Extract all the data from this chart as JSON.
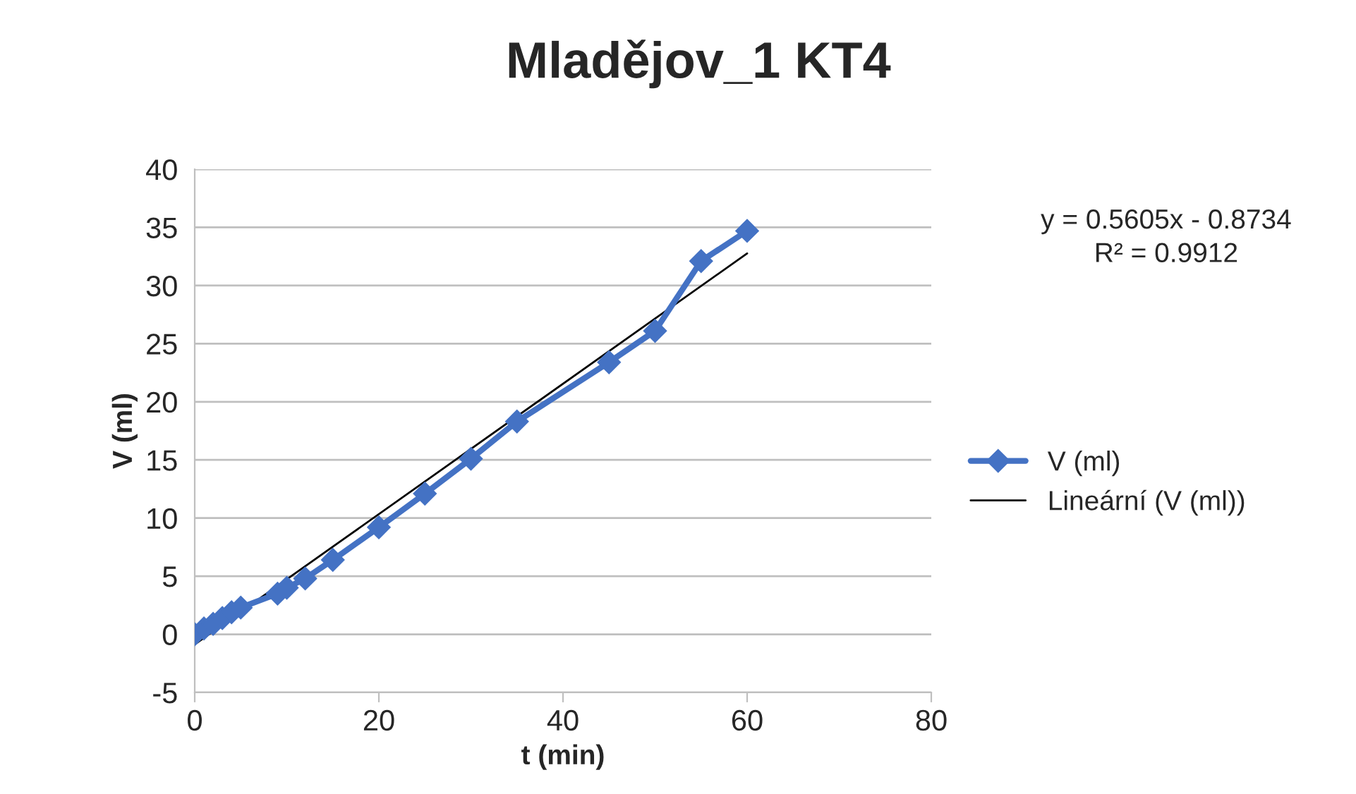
{
  "chart_data": {
    "type": "line",
    "title": "Mladějov_1 KT4",
    "xlabel": "t (min)",
    "ylabel": "V (ml)",
    "xlim": [
      0,
      80
    ],
    "xticks": [
      0,
      20,
      40,
      60,
      80
    ],
    "ylim": [
      -5,
      40
    ],
    "yticks": [
      -5,
      0,
      5,
      10,
      15,
      20,
      25,
      30,
      35,
      40
    ],
    "grid": "y",
    "legend": "right",
    "marker": "diamond",
    "annotations": [
      "y = 0.5605x - 0.8734\nR² = 0.9912"
    ],
    "series": [
      {
        "name": "V (ml)",
        "color": "#4472c4",
        "x": [
          0,
          1,
          2,
          3,
          4,
          5,
          9,
          10,
          12,
          15,
          20,
          25,
          30,
          35,
          45,
          50,
          55,
          60
        ],
        "values": [
          0,
          0.5,
          0.9,
          1.4,
          1.9,
          2.3,
          3.5,
          4.0,
          4.8,
          6.4,
          9.2,
          12.1,
          15.1,
          18.3,
          23.4,
          26.1,
          32.1,
          34.7
        ]
      },
      {
        "name": "Lineární (V (ml))",
        "type": "line",
        "color": "#000000",
        "marker": "none",
        "x": [
          0,
          60
        ],
        "values": [
          -0.87,
          32.76
        ]
      }
    ]
  }
}
